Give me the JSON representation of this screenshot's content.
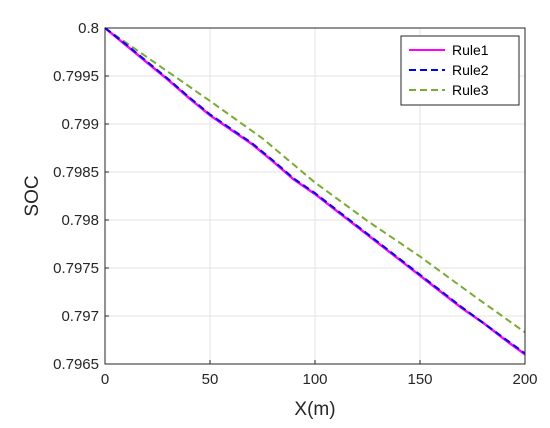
{
  "chart_data": {
    "type": "line",
    "title": "",
    "xlabel": "X(m)",
    "ylabel": "SOC",
    "xlim": [
      0,
      200
    ],
    "ylim": [
      0.7965,
      0.8
    ],
    "xticks": [
      "0",
      "50",
      "100",
      "150",
      "200"
    ],
    "yticks": [
      "0.8",
      "0.7995",
      "0.799",
      "0.7985",
      "0.798",
      "0.7975",
      "0.797",
      "0.7965"
    ],
    "grid": true,
    "legend_position": "top-right",
    "series": [
      {
        "name": "Rule1",
        "color": "#ff00ff",
        "dash": "solid",
        "x": [
          0,
          10,
          20,
          30,
          40,
          50,
          60,
          70,
          80,
          90,
          100,
          110,
          120,
          130,
          140,
          150,
          160,
          170,
          180,
          190,
          200
        ],
        "y": [
          0.8,
          0.79982,
          0.79964,
          0.79946,
          0.79927,
          0.79909,
          0.79894,
          0.79879,
          0.79861,
          0.79842,
          0.79827,
          0.7981,
          0.79793,
          0.79776,
          0.79759,
          0.79742,
          0.79725,
          0.79708,
          0.79693,
          0.79676,
          0.7966
        ]
      },
      {
        "name": "Rule2",
        "color": "#0000ff",
        "dash": "dashed",
        "x": [
          0,
          10,
          20,
          30,
          40,
          50,
          60,
          70,
          80,
          90,
          100,
          110,
          120,
          130,
          140,
          150,
          160,
          170,
          180,
          190,
          200
        ],
        "y": [
          0.8,
          0.79983,
          0.79965,
          0.79947,
          0.79928,
          0.7991,
          0.79895,
          0.7988,
          0.79862,
          0.79843,
          0.79828,
          0.79811,
          0.79794,
          0.79777,
          0.7976,
          0.79743,
          0.79726,
          0.79709,
          0.79693,
          0.79677,
          0.79661
        ]
      },
      {
        "name": "Rule3",
        "color": "#77ac30",
        "dash": "dashed",
        "x": [
          0,
          25,
          50,
          75,
          100,
          125,
          150,
          175,
          200
        ],
        "y": [
          0.8,
          0.79962,
          0.79924,
          0.79885,
          0.79839,
          0.79799,
          0.79762,
          0.79722,
          0.79683
        ]
      }
    ]
  }
}
